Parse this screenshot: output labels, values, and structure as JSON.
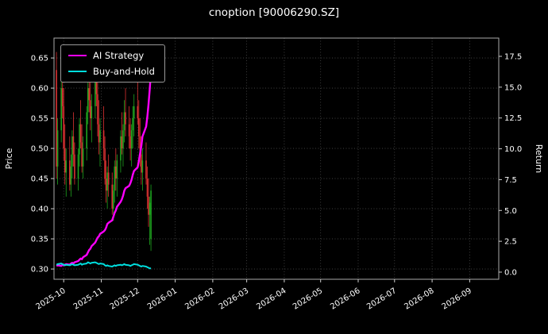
{
  "title": "cnoption [90006290.SZ]",
  "chart_data": {
    "type": "candlestick",
    "title": "cnoption [90006290.SZ]",
    "xlabel": "",
    "ylabel_left": "Price",
    "ylabel_right": "Return",
    "background": "#000000",
    "text_color": "#ffffff",
    "grid": true,
    "legend_position": "upper-left",
    "price_ylim": [
      0.283,
      0.683
    ],
    "price_ticks": [
      0.3,
      0.35,
      0.4,
      0.45,
      0.5,
      0.55,
      0.6,
      0.65
    ],
    "return_ylim": [
      -0.58,
      18.98
    ],
    "return_ticks": [
      0.0,
      2.5,
      5.0,
      7.5,
      10.0,
      12.5,
      15.0,
      17.5
    ],
    "x_range": [
      "2025-09-23",
      "2026-09-25"
    ],
    "x_ticks": [
      {
        "date": "2025-10-01",
        "label": "2025-10"
      },
      {
        "date": "2025-11-01",
        "label": "2025-11"
      },
      {
        "date": "2025-12-01",
        "label": "2025-12"
      },
      {
        "date": "2026-01-01",
        "label": "2026-01"
      },
      {
        "date": "2026-02-01",
        "label": "2026-02"
      },
      {
        "date": "2026-03-01",
        "label": "2026-03"
      },
      {
        "date": "2026-04-01",
        "label": "2026-04"
      },
      {
        "date": "2026-05-01",
        "label": "2026-05"
      },
      {
        "date": "2026-06-01",
        "label": "2026-06"
      },
      {
        "date": "2026-07-01",
        "label": "2026-07"
      },
      {
        "date": "2026-08-01",
        "label": "2026-08"
      },
      {
        "date": "2026-09-01",
        "label": "2026-09"
      }
    ],
    "candles": {
      "up_color": "#1fa51f",
      "down_color": "#dc3232",
      "dates": [
        "2025-09-25",
        "2025-09-26",
        "2025-09-29",
        "2025-09-30",
        "2025-10-01",
        "2025-10-02",
        "2025-10-03",
        "2025-10-06",
        "2025-10-07",
        "2025-10-08",
        "2025-10-09",
        "2025-10-10",
        "2025-10-13",
        "2025-10-14",
        "2025-10-15",
        "2025-10-16",
        "2025-10-17",
        "2025-10-20",
        "2025-10-21",
        "2025-10-22",
        "2025-10-23",
        "2025-10-24",
        "2025-10-27",
        "2025-10-28",
        "2025-10-29",
        "2025-10-30",
        "2025-10-31",
        "2025-11-03",
        "2025-11-04",
        "2025-11-05",
        "2025-11-06",
        "2025-11-07",
        "2025-11-10",
        "2025-11-11",
        "2025-11-12",
        "2025-11-13",
        "2025-11-14",
        "2025-11-17",
        "2025-11-18",
        "2025-11-19",
        "2025-11-20",
        "2025-11-21",
        "2025-11-24",
        "2025-11-25",
        "2025-11-26",
        "2025-11-27",
        "2025-11-28",
        "2025-12-01",
        "2025-12-02",
        "2025-12-03",
        "2025-12-04",
        "2025-12-05",
        "2025-12-08",
        "2025-12-09",
        "2025-12-10",
        "2025-12-11",
        "2025-12-12"
      ],
      "open": [
        0.63,
        0.47,
        0.53,
        0.6,
        0.57,
        0.5,
        0.46,
        0.48,
        0.44,
        0.47,
        0.52,
        0.49,
        0.45,
        0.49,
        0.54,
        0.51,
        0.47,
        0.5,
        0.56,
        0.6,
        0.58,
        0.55,
        0.57,
        0.61,
        0.59,
        0.54,
        0.51,
        0.53,
        0.5,
        0.45,
        0.43,
        0.46,
        0.44,
        0.4,
        0.43,
        0.47,
        0.45,
        0.48,
        0.52,
        0.5,
        0.53,
        0.56,
        0.54,
        0.52,
        0.5,
        0.53,
        0.55,
        0.57,
        0.55,
        0.52,
        0.49,
        0.46,
        0.48,
        0.45,
        0.42,
        0.39,
        0.35
      ],
      "high": [
        0.66,
        0.55,
        0.62,
        0.65,
        0.6,
        0.54,
        0.5,
        0.52,
        0.49,
        0.53,
        0.56,
        0.51,
        0.5,
        0.55,
        0.58,
        0.54,
        0.52,
        0.57,
        0.62,
        0.64,
        0.61,
        0.59,
        0.63,
        0.65,
        0.62,
        0.58,
        0.55,
        0.57,
        0.52,
        0.48,
        0.47,
        0.49,
        0.46,
        0.44,
        0.48,
        0.5,
        0.49,
        0.53,
        0.56,
        0.54,
        0.58,
        0.6,
        0.57,
        0.55,
        0.54,
        0.57,
        0.59,
        0.61,
        0.58,
        0.55,
        0.52,
        0.5,
        0.51,
        0.47,
        0.45,
        0.42,
        0.44
      ],
      "low": [
        0.45,
        0.44,
        0.51,
        0.55,
        0.48,
        0.44,
        0.42,
        0.43,
        0.42,
        0.45,
        0.47,
        0.44,
        0.43,
        0.47,
        0.5,
        0.46,
        0.45,
        0.48,
        0.54,
        0.56,
        0.53,
        0.51,
        0.55,
        0.57,
        0.52,
        0.49,
        0.47,
        0.48,
        0.44,
        0.41,
        0.4,
        0.42,
        0.39,
        0.38,
        0.41,
        0.43,
        0.42,
        0.46,
        0.49,
        0.47,
        0.51,
        0.52,
        0.5,
        0.48,
        0.47,
        0.5,
        0.52,
        0.54,
        0.5,
        0.47,
        0.44,
        0.43,
        0.44,
        0.4,
        0.37,
        0.34,
        0.33
      ],
      "close": [
        0.47,
        0.53,
        0.6,
        0.57,
        0.5,
        0.46,
        0.48,
        0.44,
        0.47,
        0.52,
        0.49,
        0.45,
        0.49,
        0.54,
        0.51,
        0.47,
        0.5,
        0.56,
        0.6,
        0.58,
        0.55,
        0.57,
        0.61,
        0.59,
        0.54,
        0.51,
        0.53,
        0.5,
        0.45,
        0.43,
        0.46,
        0.44,
        0.4,
        0.43,
        0.47,
        0.45,
        0.48,
        0.52,
        0.5,
        0.53,
        0.56,
        0.54,
        0.52,
        0.5,
        0.53,
        0.55,
        0.57,
        0.55,
        0.52,
        0.49,
        0.46,
        0.48,
        0.45,
        0.42,
        0.39,
        0.41,
        0.43
      ]
    },
    "series": [
      {
        "name": "AI Strategy",
        "color": "#ff00ff",
        "axis": "return",
        "width": 2.4,
        "values": [
          0.5,
          0.55,
          0.5,
          0.6,
          0.55,
          0.6,
          0.65,
          0.6,
          0.7,
          0.75,
          0.7,
          0.8,
          0.9,
          1.0,
          1.1,
          1.05,
          1.2,
          1.4,
          1.6,
          1.8,
          1.9,
          2.1,
          2.4,
          2.6,
          2.8,
          2.9,
          3.1,
          3.3,
          3.4,
          3.6,
          3.9,
          4.0,
          4.2,
          4.5,
          4.8,
          5.0,
          5.3,
          5.7,
          5.9,
          6.2,
          6.6,
          6.8,
          7.0,
          7.2,
          7.5,
          7.9,
          8.2,
          8.5,
          9.0,
          9.6,
          10.2,
          11.0,
          11.8,
          12.6,
          13.6,
          14.8,
          16.3
        ]
      },
      {
        "name": "Buy-and-Hold",
        "color": "#00dede",
        "axis": "return",
        "width": 2.0,
        "values": [
          0.6,
          0.65,
          0.7,
          0.65,
          0.6,
          0.55,
          0.6,
          0.55,
          0.6,
          0.65,
          0.6,
          0.55,
          0.6,
          0.65,
          0.7,
          0.6,
          0.65,
          0.7,
          0.8,
          0.75,
          0.7,
          0.75,
          0.8,
          0.75,
          0.7,
          0.65,
          0.7,
          0.65,
          0.55,
          0.5,
          0.55,
          0.5,
          0.45,
          0.5,
          0.55,
          0.5,
          0.55,
          0.6,
          0.55,
          0.6,
          0.65,
          0.6,
          0.55,
          0.5,
          0.55,
          0.6,
          0.65,
          0.6,
          0.55,
          0.5,
          0.45,
          0.5,
          0.45,
          0.4,
          0.35,
          0.3,
          0.3
        ]
      }
    ]
  }
}
